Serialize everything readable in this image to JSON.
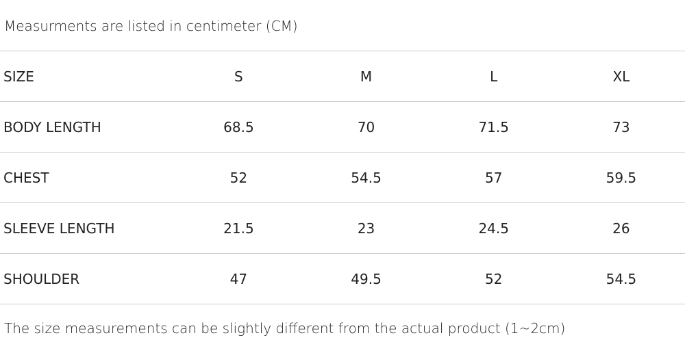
{
  "note_top": "Measurments are listed in centimeter (CM)",
  "table": {
    "header": [
      "SIZE",
      "S",
      "M",
      "L",
      "XL"
    ],
    "rows": [
      [
        "BODY LENGTH",
        "68.5",
        "70",
        "71.5",
        "73"
      ],
      [
        "CHEST",
        "52",
        "54.5",
        "57",
        "59.5"
      ],
      [
        "SLEEVE LENGTH",
        "21.5",
        "23",
        "24.5",
        "26"
      ],
      [
        "SHOULDER",
        "47",
        "49.5",
        "52",
        "54.5"
      ]
    ]
  },
  "note_bottom": "The size measurements can be slightly different from the actual product (1~2cm)"
}
